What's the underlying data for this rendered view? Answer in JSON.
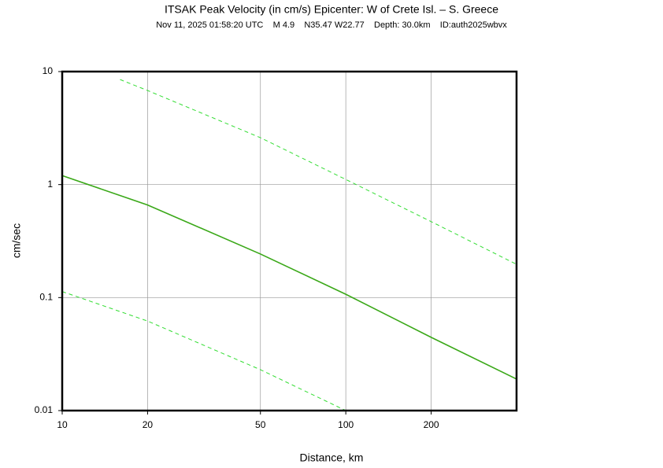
{
  "chart_data": {
    "type": "line",
    "title": "ITSAK Peak Velocity (in cm/s) Epicenter: W of Crete Isl. – S. Greece",
    "subtitle": "Nov 11, 2025 01:58:20 UTC    M 4.9    N35.47 W22.77    Depth: 30.0km    ID:auth2025wbvx",
    "xlabel": "Distance, km",
    "ylabel": "cm/sec",
    "xscale": "log",
    "yscale": "log",
    "grid": true,
    "xlim": [
      10,
      400
    ],
    "ylim": [
      0.01,
      10
    ],
    "xticks": [
      10,
      20,
      50,
      100,
      200
    ],
    "yticks": [
      0.01,
      0.1,
      1,
      10
    ],
    "series": [
      {
        "color": "#3aa818",
        "dashed": false,
        "x": [
          10,
          20,
          50,
          100,
          200,
          400
        ],
        "values": [
          1.2,
          0.66,
          0.243,
          0.107,
          0.0445,
          0.019
        ]
      },
      {
        "color": "#33dd33",
        "dashed": true,
        "x": [
          16,
          20,
          50,
          100,
          200,
          400
        ],
        "values": [
          8.5,
          6.8,
          2.6,
          1.11,
          0.47,
          0.197
        ]
      },
      {
        "color": "#33dd33",
        "dashed": true,
        "x": [
          10,
          20,
          50,
          100
        ],
        "values": [
          0.113,
          0.062,
          0.023,
          0.01
        ]
      }
    ]
  }
}
